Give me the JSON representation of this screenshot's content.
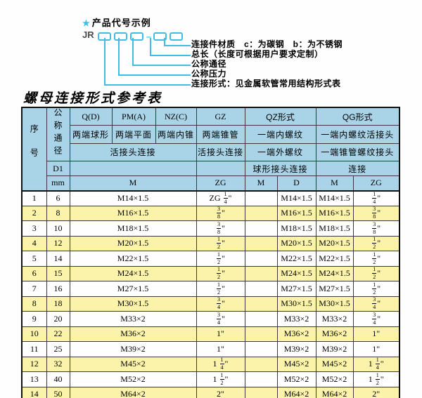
{
  "colors": {
    "accent": "#3fbde4",
    "header_bg": "#a9d4e8",
    "row_alt": "#faf3a9"
  },
  "diagram": {
    "star": "★",
    "title": "产品代号示例",
    "code_prefix": "JR",
    "code_dash": "—",
    "labels": [
      "连接件材质　c：为碳钢　b：为不锈钢",
      "总长（长度可根据用户要求定制）",
      "公称通径",
      "公称压力",
      "连接形式：见金属软管常用结构形式表"
    ]
  },
  "table": {
    "title": "螺母连接形式参考表",
    "header": {
      "xuhao": "序号",
      "gongcheng": "公称通径",
      "d1": "D1",
      "mm": "mm",
      "col_q": "Q(D)",
      "col_pm": "PM(A)",
      "col_nz": "NZ(C)",
      "col_gz": "GZ",
      "col_qz": "QZ形式",
      "col_qg": "QG形式",
      "q_desc": "两端球形",
      "pm_desc": "两端平面",
      "nz_desc": "两端内锥",
      "gz_desc": "两端锥管",
      "qz_desc1": "一端内螺纹",
      "qg_desc1": "一端内螺纹活接头",
      "qpm_conn": "活接头连接",
      "gz_conn": "活接头连接",
      "qz_desc2": "一端外螺纹",
      "qg_desc2": "一端锥管螺纹接头",
      "qz_conn": "球形接头连接",
      "qg_conn": "连接",
      "m_main": "M",
      "zg_main": "ZG",
      "qz_m": "M",
      "qz_d": "D",
      "qg_m": "M",
      "qg_zg": "ZG"
    },
    "rows": [
      {
        "no": "1",
        "dn": "6",
        "m": "M14×1.5",
        "gz": "ZG 1/4\"",
        "qz_m": "",
        "qz_d": "M14×1.5",
        "qg_m": "M14×1.5",
        "qg_zg": "1/4\""
      },
      {
        "no": "2",
        "dn": "8",
        "m": "M16×1.5",
        "gz": "3/8\"",
        "qz_m": "",
        "qz_d": "M16×1.5",
        "qg_m": "M16×1.5",
        "qg_zg": "3/8\""
      },
      {
        "no": "3",
        "dn": "10",
        "m": "M18×1.5",
        "gz": "3/8\"",
        "qz_m": "",
        "qz_d": "M18×1.5",
        "qg_m": "M18×1.5",
        "qg_zg": "3/8\""
      },
      {
        "no": "4",
        "dn": "12",
        "m": "M20×1.5",
        "gz": "1/2\"",
        "qz_m": "",
        "qz_d": "M20×1.5",
        "qg_m": "M20×1.5",
        "qg_zg": "1/2\""
      },
      {
        "no": "5",
        "dn": "14",
        "m": "M22×1.5",
        "gz": "1/2\"",
        "qz_m": "",
        "qz_d": "M22×1.5",
        "qg_m": "M22×1.5",
        "qg_zg": "1/2\""
      },
      {
        "no": "6",
        "dn": "15",
        "m": "M24×1.5",
        "gz": "1/2\"",
        "qz_m": "",
        "qz_d": "M24×1.5",
        "qg_m": "M24×1.5",
        "qg_zg": "1/2\""
      },
      {
        "no": "7",
        "dn": "16",
        "m": "M27×1.5",
        "gz": "1/2\"",
        "qz_m": "",
        "qz_d": "M27×1.5",
        "qg_m": "M27×1.5",
        "qg_zg": "1/2\""
      },
      {
        "no": "8",
        "dn": "18",
        "m": "M30×1.5",
        "gz": "3/4\"",
        "qz_m": "",
        "qz_d": "M30×1.5",
        "qg_m": "M30×1.5",
        "qg_zg": "3/4\""
      },
      {
        "no": "9",
        "dn": "20",
        "m": "M33×2",
        "gz": "3/4\"",
        "qz_m": "",
        "qz_d": "M33×2",
        "qg_m": "M33×2",
        "qg_zg": "3/4\""
      },
      {
        "no": "10",
        "dn": "22",
        "m": "M36×2",
        "gz": "1\"",
        "qz_m": "",
        "qz_d": "M36×2",
        "qg_m": "M36×2",
        "qg_zg": "1\""
      },
      {
        "no": "11",
        "dn": "25",
        "m": "M39×2",
        "gz": "1\"",
        "qz_m": "",
        "qz_d": "M39×2",
        "qg_m": "M39×2",
        "qg_zg": "1\""
      },
      {
        "no": "12",
        "dn": "32",
        "m": "M45×2",
        "gz": "1 1/4\"",
        "qz_m": "",
        "qz_d": "M45×2",
        "qg_m": "M45×2",
        "qg_zg": "1 1/4\""
      },
      {
        "no": "13",
        "dn": "40",
        "m": "M52×2",
        "gz": "1 1/2\"",
        "qz_m": "",
        "qz_d": "M52×2",
        "qg_m": "M52×2",
        "qg_zg": "1 1/2\""
      },
      {
        "no": "14",
        "dn": "50",
        "m": "M64×2",
        "gz": "2\"",
        "qz_m": "",
        "qz_d": "M64×2",
        "qg_m": "M64×2",
        "qg_zg": "2\""
      }
    ]
  }
}
